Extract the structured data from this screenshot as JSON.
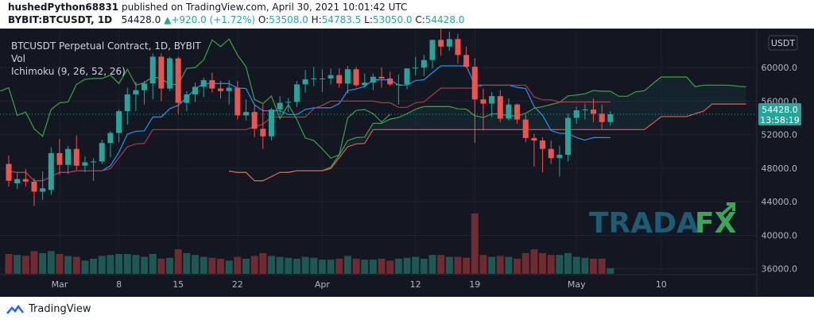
{
  "header": {
    "author": "hushedPython68831",
    "published": "published on TradingView.com, April 30, 2021 10:01:42 UTC",
    "symbol": "BYBIT:BTCUSDT, 1D",
    "last": "54428.0",
    "change": "+920.0 (+1.72%)",
    "o_label": "O:",
    "o": "53508.0",
    "h_label": "H:",
    "h": "54783.5",
    "l_label": "L:",
    "l": "53050.0",
    "c_label": "C:",
    "c": "54428.0"
  },
  "legend": {
    "title": "BTCUSDT Perpetual Contract, 1D, BYBIT",
    "vol": "Vol",
    "ichimoku": "Ichimoku (9, 26, 52, 26)"
  },
  "price_axis": {
    "currency": "USDT",
    "last_price": "54428.0",
    "countdown": "13:58:19"
  },
  "watermark": {
    "part1": "TRADA",
    "part2": "FX"
  },
  "footer": {
    "brand": "TradingView"
  },
  "colors": {
    "up": "#26a69a",
    "down": "#ef5350",
    "tenkan": "#2196f3",
    "kijun": "#b2374a",
    "chikou": "#43a047",
    "cloud": "#26a69a"
  },
  "chart_data": {
    "type": "candlestick",
    "ylim": [
      35500,
      63800
    ],
    "yticks": [
      36000,
      40000,
      44000,
      48000,
      52000,
      56000,
      60000
    ],
    "ytick_labels": [
      "36000.0",
      "40000.0",
      "44000.0",
      "48000.0",
      "52000.0",
      "56000.0",
      "60000.0"
    ],
    "x_ticks": [
      {
        "i": 6,
        "label": "Mar"
      },
      {
        "i": 13,
        "label": "8"
      },
      {
        "i": 20,
        "label": "15"
      },
      {
        "i": 27,
        "label": "22"
      },
      {
        "i": 37,
        "label": "Apr"
      },
      {
        "i": 48,
        "label": "12"
      },
      {
        "i": 55,
        "label": "19"
      },
      {
        "i": 67,
        "label": "May"
      },
      {
        "i": 77,
        "label": "10"
      }
    ],
    "candles": [
      {
        "o": 48500,
        "h": 49500,
        "l": 45800,
        "c": 46500,
        "v": 2.1
      },
      {
        "o": 46200,
        "h": 47500,
        "l": 45500,
        "c": 46700,
        "v": 2.0
      },
      {
        "o": 46700,
        "h": 47900,
        "l": 45800,
        "c": 46400,
        "v": 1.9
      },
      {
        "o": 46400,
        "h": 46800,
        "l": 43500,
        "c": 45200,
        "v": 2.4
      },
      {
        "o": 45200,
        "h": 47600,
        "l": 44200,
        "c": 45600,
        "v": 2.2
      },
      {
        "o": 45400,
        "h": 50500,
        "l": 44800,
        "c": 49800,
        "v": 2.4
      },
      {
        "o": 49800,
        "h": 51500,
        "l": 47200,
        "c": 48400,
        "v": 2.1
      },
      {
        "o": 48400,
        "h": 50700,
        "l": 47300,
        "c": 50300,
        "v": 1.9
      },
      {
        "o": 50300,
        "h": 51900,
        "l": 47800,
        "c": 48300,
        "v": 1.8
      },
      {
        "o": 48300,
        "h": 49400,
        "l": 47500,
        "c": 48700,
        "v": 1.4
      },
      {
        "o": 48700,
        "h": 49200,
        "l": 46500,
        "c": 48800,
        "v": 1.6
      },
      {
        "o": 48800,
        "h": 51400,
        "l": 48500,
        "c": 51000,
        "v": 1.9
      },
      {
        "o": 51000,
        "h": 52400,
        "l": 49300,
        "c": 52200,
        "v": 2.0
      },
      {
        "o": 52200,
        "h": 55000,
        "l": 51100,
        "c": 54800,
        "v": 2.1
      },
      {
        "o": 54800,
        "h": 57600,
        "l": 53200,
        "c": 56800,
        "v": 2.1
      },
      {
        "o": 56800,
        "h": 58300,
        "l": 54800,
        "c": 57300,
        "v": 2.0
      },
      {
        "o": 57300,
        "h": 58400,
        "l": 55600,
        "c": 58100,
        "v": 1.8
      },
      {
        "o": 58100,
        "h": 61700,
        "l": 56200,
        "c": 61300,
        "v": 2.1
      },
      {
        "o": 61300,
        "h": 61700,
        "l": 56000,
        "c": 57500,
        "v": 1.6
      },
      {
        "o": 57500,
        "h": 61300,
        "l": 57200,
        "c": 61100,
        "v": 1.7
      },
      {
        "o": 61100,
        "h": 61300,
        "l": 54500,
        "c": 55800,
        "v": 2.6
      },
      {
        "o": 55800,
        "h": 57200,
        "l": 54800,
        "c": 56800,
        "v": 2.2
      },
      {
        "o": 56800,
        "h": 58200,
        "l": 55900,
        "c": 57700,
        "v": 2.0
      },
      {
        "o": 57700,
        "h": 58800,
        "l": 56500,
        "c": 58500,
        "v": 1.8
      },
      {
        "o": 58500,
        "h": 59400,
        "l": 57000,
        "c": 57500,
        "v": 1.7
      },
      {
        "o": 57500,
        "h": 58400,
        "l": 56300,
        "c": 57200,
        "v": 1.6
      },
      {
        "o": 57200,
        "h": 58500,
        "l": 55600,
        "c": 57600,
        "v": 1.4
      },
      {
        "o": 57600,
        "h": 58400,
        "l": 53800,
        "c": 54300,
        "v": 1.8
      },
      {
        "o": 54300,
        "h": 56200,
        "l": 53700,
        "c": 54700,
        "v": 1.6
      },
      {
        "o": 54700,
        "h": 55500,
        "l": 51700,
        "c": 52700,
        "v": 1.9
      },
      {
        "o": 52700,
        "h": 55600,
        "l": 50300,
        "c": 51800,
        "v": 2.2
      },
      {
        "o": 51800,
        "h": 55200,
        "l": 51300,
        "c": 55000,
        "v": 1.9
      },
      {
        "o": 55000,
        "h": 56600,
        "l": 54300,
        "c": 55800,
        "v": 1.8
      },
      {
        "o": 55800,
        "h": 56400,
        "l": 54700,
        "c": 55900,
        "v": 1.7
      },
      {
        "o": 55900,
        "h": 58400,
        "l": 55300,
        "c": 58000,
        "v": 1.6
      },
      {
        "o": 58000,
        "h": 59700,
        "l": 57000,
        "c": 58600,
        "v": 1.8
      },
      {
        "o": 58600,
        "h": 60100,
        "l": 57800,
        "c": 58700,
        "v": 1.7
      },
      {
        "o": 58700,
        "h": 59800,
        "l": 57100,
        "c": 58700,
        "v": 1.5
      },
      {
        "o": 58700,
        "h": 59900,
        "l": 58000,
        "c": 59100,
        "v": 1.5
      },
      {
        "o": 59100,
        "h": 59900,
        "l": 57600,
        "c": 58100,
        "v": 1.6
      },
      {
        "o": 58100,
        "h": 60200,
        "l": 56900,
        "c": 59800,
        "v": 1.9
      },
      {
        "o": 59800,
        "h": 60100,
        "l": 57700,
        "c": 57900,
        "v": 1.6
      },
      {
        "o": 57900,
        "h": 59300,
        "l": 57600,
        "c": 58200,
        "v": 1.5
      },
      {
        "o": 58200,
        "h": 59300,
        "l": 57300,
        "c": 58900,
        "v": 1.5
      },
      {
        "o": 58900,
        "h": 60000,
        "l": 57600,
        "c": 58700,
        "v": 1.6
      },
      {
        "o": 58700,
        "h": 59500,
        "l": 57800,
        "c": 58000,
        "v": 1.4
      },
      {
        "o": 58000,
        "h": 59200,
        "l": 55600,
        "c": 58000,
        "v": 1.6
      },
      {
        "o": 58000,
        "h": 59800,
        "l": 57400,
        "c": 59900,
        "v": 1.7
      },
      {
        "o": 59900,
        "h": 61300,
        "l": 59100,
        "c": 60000,
        "v": 1.8
      },
      {
        "o": 60000,
        "h": 61500,
        "l": 59000,
        "c": 60900,
        "v": 1.6
      },
      {
        "o": 60900,
        "h": 63200,
        "l": 59900,
        "c": 63300,
        "v": 2.0
      },
      {
        "o": 63300,
        "h": 64800,
        "l": 61400,
        "c": 62500,
        "v": 2.0
      },
      {
        "o": 62500,
        "h": 64300,
        "l": 62000,
        "c": 63400,
        "v": 1.8
      },
      {
        "o": 63400,
        "h": 64000,
        "l": 60500,
        "c": 61500,
        "v": 1.8
      },
      {
        "o": 61500,
        "h": 62500,
        "l": 60000,
        "c": 60100,
        "v": 1.7
      },
      {
        "o": 60100,
        "h": 61100,
        "l": 51000,
        "c": 56200,
        "v": 6.4
      },
      {
        "o": 56200,
        "h": 57500,
        "l": 52500,
        "c": 55700,
        "v": 2.0
      },
      {
        "o": 55700,
        "h": 57100,
        "l": 54100,
        "c": 56600,
        "v": 1.8
      },
      {
        "o": 56600,
        "h": 57300,
        "l": 53500,
        "c": 53900,
        "v": 1.9
      },
      {
        "o": 53900,
        "h": 56300,
        "l": 53700,
        "c": 55600,
        "v": 1.8
      },
      {
        "o": 55600,
        "h": 55700,
        "l": 53300,
        "c": 53800,
        "v": 1.6
      },
      {
        "o": 53800,
        "h": 54400,
        "l": 51100,
        "c": 51600,
        "v": 2.2
      },
      {
        "o": 51600,
        "h": 52100,
        "l": 48200,
        "c": 51300,
        "v": 2.6
      },
      {
        "o": 51300,
        "h": 51700,
        "l": 47500,
        "c": 50300,
        "v": 2.2
      },
      {
        "o": 50300,
        "h": 51300,
        "l": 48500,
        "c": 49200,
        "v": 2.0
      },
      {
        "o": 49200,
        "h": 50700,
        "l": 47000,
        "c": 49600,
        "v": 2.0
      },
      {
        "o": 49600,
        "h": 54500,
        "l": 48800,
        "c": 54000,
        "v": 2.2
      },
      {
        "o": 54000,
        "h": 55300,
        "l": 53300,
        "c": 54900,
        "v": 1.8
      },
      {
        "o": 54900,
        "h": 55700,
        "l": 53800,
        "c": 55000,
        "v": 1.7
      },
      {
        "o": 55000,
        "h": 56300,
        "l": 53500,
        "c": 54500,
        "v": 1.6
      },
      {
        "o": 54500,
        "h": 55600,
        "l": 52700,
        "c": 53500,
        "v": 1.6
      },
      {
        "o": 53508,
        "h": 54783.5,
        "l": 53050,
        "c": 54428,
        "v": 0.6
      }
    ]
  }
}
